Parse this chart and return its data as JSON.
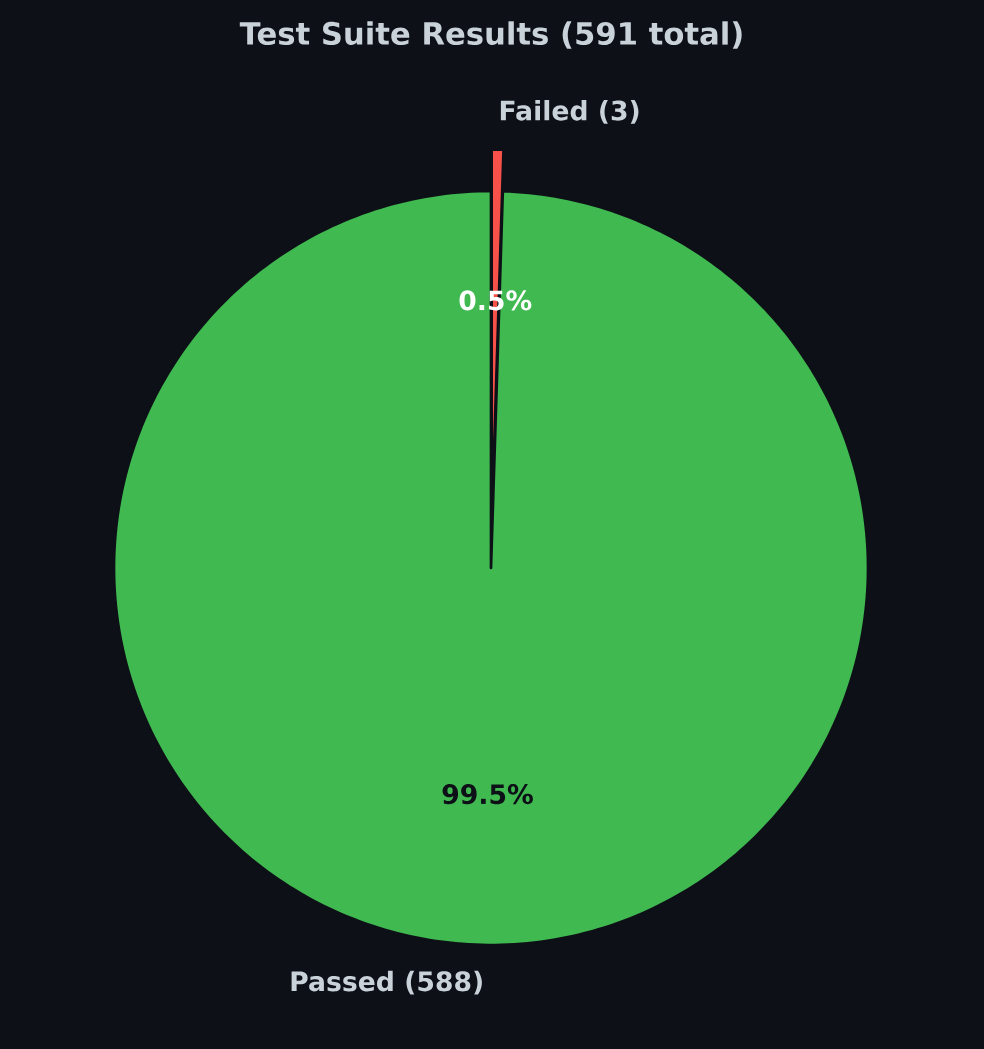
{
  "chart_data": {
    "type": "pie",
    "title": "Test Suite Results (591 total)",
    "categories": [
      "Failed (3)",
      "Passed (588)"
    ],
    "values": [
      0.5,
      99.5
    ],
    "colors": [
      "#f85149",
      "#3fb950"
    ],
    "value_labels": [
      "0.5%",
      "99.5%"
    ]
  }
}
